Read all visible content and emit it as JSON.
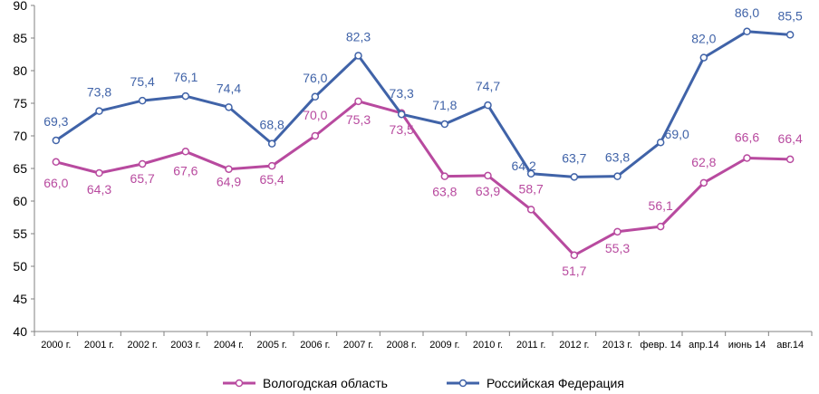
{
  "chart_data": {
    "type": "line",
    "categories": [
      "2000 г.",
      "2001 г.",
      "2002 г.",
      "2003 г.",
      "2004 г.",
      "2005 г.",
      "2006 г.",
      "2007 г.",
      "2008 г.",
      "2009 г.",
      "2010 г.",
      "2011 г.",
      "2012 г.",
      "2013 г.",
      "февр. 14",
      "апр.14",
      "июнь 14",
      "авг.14"
    ],
    "ylim": [
      40,
      90
    ],
    "yticks": [
      "40",
      "45",
      "50",
      "55",
      "60",
      "65",
      "70",
      "75",
      "80",
      "85",
      "90"
    ],
    "grid": false,
    "legend_position": "bottom",
    "series": [
      {
        "name": "Вологодская область",
        "color": "#B84A9F",
        "values": [
          66.0,
          64.3,
          65.7,
          67.6,
          64.9,
          65.4,
          70.0,
          75.3,
          73.5,
          63.8,
          63.9,
          58.7,
          51.7,
          55.3,
          56.1,
          62.8,
          66.6,
          66.4
        ],
        "labels": [
          "66,0",
          "64,3",
          "65,7",
          "67,6",
          "64,9",
          "65,4",
          "70,0",
          "75,3",
          "73,5",
          "63,8",
          "63,9",
          "58,7",
          "51,7",
          "55,3",
          "56,1",
          "62,8",
          "66,6",
          "66,4"
        ]
      },
      {
        "name": "Российская Федерация",
        "color": "#4063A8",
        "values": [
          69.3,
          73.8,
          75.4,
          76.1,
          74.4,
          68.8,
          76.0,
          82.3,
          73.3,
          71.8,
          74.7,
          64.2,
          63.7,
          63.8,
          69.0,
          82.0,
          86.0,
          85.5
        ],
        "labels": [
          "69,3",
          "73,8",
          "75,4",
          "76,1",
          "74,4",
          "68,8",
          "76,0",
          "82,3",
          "73,3",
          "71,8",
          "74,7",
          "64,2",
          "63,7",
          "63,8",
          "69,0",
          "82,0",
          "86,0",
          "85,5"
        ]
      }
    ]
  }
}
